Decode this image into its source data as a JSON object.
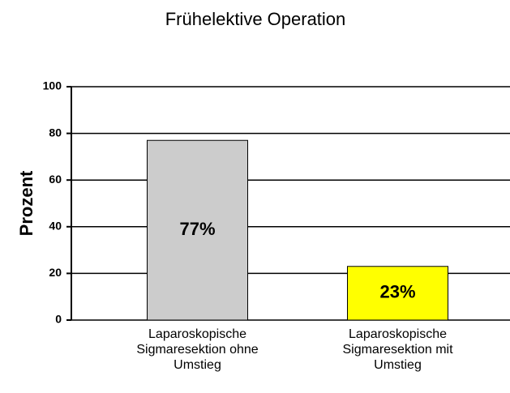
{
  "chart_data": {
    "type": "bar",
    "title": "Frühelektive Operation",
    "y_label": "Prozent",
    "categories": [
      "Laparoskopische\nSigmaresektion ohne\nUmstieg",
      "Laparoskopische\nSigmaresektion mit\nUmstieg"
    ],
    "values": [
      77,
      23
    ],
    "value_labels": [
      "77%",
      "23%"
    ],
    "colors": [
      "#cccccc",
      "#ffff00"
    ],
    "ylim": [
      0,
      100
    ],
    "yticks": [
      0,
      20,
      40,
      60,
      80,
      100
    ],
    "grid": true
  }
}
